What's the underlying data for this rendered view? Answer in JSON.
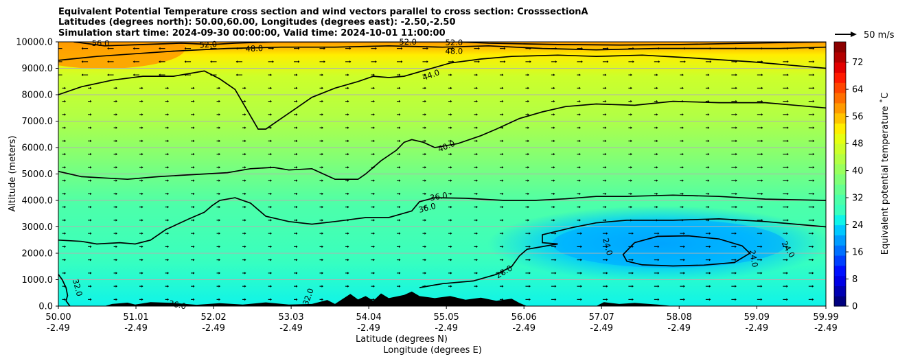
{
  "chart_data": {
    "type": "contourf",
    "title_lines": [
      "Equivalent Potential Temperature cross section and wind vectors parallel to cross section: CrosssectionA",
      "Latitudes (degrees north): 50.00,60.00, Longitudes (degrees east): -2.50,-2.50",
      "Simulation start time: 2024-09-30 00:00:00, Valid time: 2024-10-01 11:00:00"
    ],
    "ylabel": "Altitude (meters)",
    "xlabel_lat": "Latitude (degrees N)",
    "xlabel_lon": "Longitude (degrees E)",
    "xlim": [
      50.0,
      59.99
    ],
    "ylim": [
      0,
      10000
    ],
    "y_ticks": [
      {
        "value": 0,
        "label": "0.0"
      },
      {
        "value": 1000,
        "label": "1000.0"
      },
      {
        "value": 2000,
        "label": "2000.0"
      },
      {
        "value": 3000,
        "label": "3000.0"
      },
      {
        "value": 4000,
        "label": "4000.0"
      },
      {
        "value": 5000,
        "label": "5000.0"
      },
      {
        "value": 6000,
        "label": "6000.0"
      },
      {
        "value": 7000,
        "label": "7000.0"
      },
      {
        "value": 8000,
        "label": "8000.0"
      },
      {
        "value": 9000,
        "label": "9000.0"
      },
      {
        "value": 10000,
        "label": "10000.0"
      }
    ],
    "x_ticks": [
      {
        "value": 50.0,
        "lat": "50.00",
        "lon": "-2.49"
      },
      {
        "value": 51.01,
        "lat": "51.01",
        "lon": "-2.49"
      },
      {
        "value": 52.02,
        "lat": "52.02",
        "lon": "-2.49"
      },
      {
        "value": 53.03,
        "lat": "53.03",
        "lon": "-2.49"
      },
      {
        "value": 54.04,
        "lat": "54.04",
        "lon": "-2.49"
      },
      {
        "value": 55.05,
        "lat": "55.05",
        "lon": "-2.49"
      },
      {
        "value": 56.06,
        "lat": "56.06",
        "lon": "-2.49"
      },
      {
        "value": 57.07,
        "lat": "57.07",
        "lon": "-2.49"
      },
      {
        "value": 58.08,
        "lat": "58.08",
        "lon": "-2.49"
      },
      {
        "value": 59.09,
        "lat": "59.09",
        "lon": "-2.49"
      },
      {
        "value": 59.99,
        "lat": "59.99",
        "lon": "-2.49"
      }
    ],
    "colorbar": {
      "label": "Equivalent potential temperature ˚C",
      "min": 0,
      "max": 78,
      "ticks": [
        0,
        8,
        16,
        24,
        32,
        40,
        48,
        56,
        64,
        72
      ],
      "colors": [
        "#00007f",
        "#0000b2",
        "#0000e5",
        "#0010ff",
        "#0040ff",
        "#0070ff",
        "#009cff",
        "#00c8ff",
        "#0ff4e9",
        "#3affbd",
        "#4cffaa",
        "#66ff90",
        "#80ff77",
        "#99ff5d",
        "#b3ff44",
        "#cdff2a",
        "#e6ff11",
        "#ffee00",
        "#ffc400",
        "#ff9a00",
        "#ff6f00",
        "#ff4500",
        "#ff1a00",
        "#e20000",
        "#b20000",
        "#8b0000"
      ]
    },
    "vector_key": {
      "label": "50 m/s",
      "value": 50
    },
    "contour_levels": [
      {
        "level": 24,
        "label": "24.0",
        "points": [
          [
            57.5,
            2400
          ],
          [
            57.8,
            2640
          ],
          [
            58.2,
            2660
          ],
          [
            58.6,
            2540
          ],
          [
            58.9,
            2280
          ],
          [
            59.0,
            2000
          ],
          [
            58.8,
            1650
          ],
          [
            58.4,
            1550
          ],
          [
            58.0,
            1520
          ],
          [
            57.6,
            1560
          ],
          [
            57.4,
            1700
          ],
          [
            57.35,
            1950
          ],
          [
            57.5,
            2400
          ]
        ]
      },
      {
        "level": 28,
        "label": "28.0",
        "points": [
          [
            54.7,
            700
          ],
          [
            55.0,
            850
          ],
          [
            55.4,
            950
          ],
          [
            55.7,
            1200
          ],
          [
            55.9,
            1500
          ],
          [
            56.0,
            1900
          ],
          [
            56.1,
            2150
          ],
          [
            56.4,
            2300
          ],
          [
            56.5,
            2350
          ],
          [
            56.3,
            2400
          ],
          [
            56.3,
            2700
          ],
          [
            56.7,
            2980
          ],
          [
            57.0,
            3150
          ],
          [
            57.4,
            3250
          ],
          [
            58.0,
            3250
          ],
          [
            58.6,
            3300
          ],
          [
            59.2,
            3200
          ],
          [
            59.99,
            3000
          ]
        ]
      },
      {
        "level": 32,
        "label": "32.0",
        "points": [
          [
            50.0,
            1200
          ],
          [
            50.05,
            1000
          ],
          [
            50.1,
            700
          ],
          [
            50.12,
            400
          ],
          [
            50.1,
            200
          ],
          [
            50.15,
            0
          ]
        ]
      },
      {
        "level": 36,
        "label": "36.0",
        "points": [
          [
            50.0,
            2500
          ],
          [
            50.3,
            2450
          ],
          [
            50.5,
            2350
          ],
          [
            50.8,
            2400
          ],
          [
            51.0,
            2350
          ],
          [
            51.2,
            2500
          ],
          [
            51.4,
            2900
          ],
          [
            51.7,
            3300
          ],
          [
            51.9,
            3550
          ],
          [
            52.0,
            3800
          ],
          [
            52.1,
            4000
          ],
          [
            52.3,
            4100
          ],
          [
            52.5,
            3900
          ],
          [
            52.7,
            3400
          ],
          [
            53.0,
            3200
          ],
          [
            53.3,
            3100
          ],
          [
            53.6,
            3200
          ],
          [
            54.0,
            3350
          ],
          [
            54.3,
            3350
          ],
          [
            54.6,
            3600
          ],
          [
            54.7,
            3950
          ],
          [
            54.9,
            4100
          ],
          [
            55.3,
            4080
          ],
          [
            55.8,
            4000
          ],
          [
            56.2,
            4000
          ],
          [
            56.6,
            4060
          ],
          [
            57.0,
            4150
          ],
          [
            57.4,
            4150
          ],
          [
            58.0,
            4200
          ],
          [
            58.6,
            4150
          ],
          [
            59.2,
            4050
          ],
          [
            59.99,
            4000
          ]
        ]
      },
      {
        "level": 40,
        "label": "40.0",
        "points": [
          [
            50.0,
            5100
          ],
          [
            50.3,
            4900
          ],
          [
            50.6,
            4850
          ],
          [
            50.9,
            4800
          ],
          [
            51.3,
            4900
          ],
          [
            51.6,
            4950
          ],
          [
            51.9,
            5000
          ],
          [
            52.2,
            5050
          ],
          [
            52.5,
            5200
          ],
          [
            52.8,
            5250
          ],
          [
            53.0,
            5150
          ],
          [
            53.3,
            5200
          ],
          [
            53.6,
            4800
          ],
          [
            53.9,
            4800
          ],
          [
            54.0,
            5000
          ],
          [
            54.2,
            5500
          ],
          [
            54.4,
            5900
          ],
          [
            54.5,
            6200
          ],
          [
            54.6,
            6300
          ],
          [
            54.75,
            6200
          ],
          [
            54.9,
            6000
          ],
          [
            55.2,
            6150
          ],
          [
            55.5,
            6450
          ],
          [
            55.7,
            6700
          ],
          [
            56.0,
            7100
          ],
          [
            56.3,
            7350
          ],
          [
            56.6,
            7550
          ],
          [
            57.0,
            7650
          ],
          [
            57.5,
            7600
          ],
          [
            58.0,
            7750
          ],
          [
            58.6,
            7700
          ],
          [
            59.2,
            7700
          ],
          [
            59.99,
            7500
          ]
        ]
      },
      {
        "level": 44,
        "label": "44.0",
        "points": [
          [
            50.0,
            8000
          ],
          [
            50.3,
            8300
          ],
          [
            50.7,
            8550
          ],
          [
            51.1,
            8700
          ],
          [
            51.5,
            8700
          ],
          [
            51.9,
            8900
          ],
          [
            52.1,
            8600
          ],
          [
            52.3,
            8200
          ],
          [
            52.4,
            7700
          ],
          [
            52.5,
            7200
          ],
          [
            52.6,
            6700
          ],
          [
            52.7,
            6700
          ],
          [
            52.9,
            7100
          ],
          [
            53.1,
            7500
          ],
          [
            53.3,
            7900
          ],
          [
            53.6,
            8250
          ],
          [
            53.9,
            8500
          ],
          [
            54.1,
            8700
          ],
          [
            54.3,
            8650
          ],
          [
            54.5,
            8700
          ],
          [
            54.8,
            8950
          ],
          [
            55.1,
            9200
          ],
          [
            55.5,
            9350
          ],
          [
            55.9,
            9450
          ],
          [
            56.5,
            9500
          ],
          [
            57.0,
            9450
          ],
          [
            57.6,
            9500
          ],
          [
            58.2,
            9400
          ],
          [
            59.0,
            9250
          ],
          [
            59.99,
            9000
          ]
        ]
      },
      {
        "level": 48,
        "label": "48.0",
        "points": [
          [
            50.0,
            9300
          ],
          [
            50.5,
            9450
          ],
          [
            51.0,
            9550
          ],
          [
            51.5,
            9650
          ],
          [
            52.2,
            9750
          ],
          [
            52.9,
            9800
          ],
          [
            53.6,
            9800
          ],
          [
            54.3,
            9850
          ],
          [
            55.0,
            9800
          ],
          [
            55.6,
            9850
          ],
          [
            56.3,
            9750
          ],
          [
            57.0,
            9700
          ],
          [
            57.8,
            9750
          ],
          [
            58.6,
            9750
          ],
          [
            59.4,
            9750
          ],
          [
            59.99,
            9800
          ]
        ]
      },
      {
        "level": 52,
        "label": "52.0",
        "points": [
          [
            50.2,
            10000
          ],
          [
            50.6,
            9850
          ],
          [
            51.1,
            9900
          ],
          [
            51.6,
            9950
          ],
          [
            52.0,
            9900
          ],
          [
            52.3,
            9950
          ],
          [
            52.8,
            10000
          ],
          [
            55.2,
            10000
          ],
          [
            55.6,
            9950
          ],
          [
            56.5,
            9900
          ],
          [
            57.3,
            9880
          ],
          [
            58.1,
            9900
          ],
          [
            59.0,
            9950
          ],
          [
            59.99,
            10000
          ]
        ]
      }
    ],
    "contour_labels": [
      {
        "text": "52.0",
        "x": 51.95,
        "y": 9900,
        "angle": -4
      },
      {
        "text": "48.0",
        "x": 52.55,
        "y": 9750,
        "angle": -3
      },
      {
        "text": "52.0",
        "x": 54.55,
        "y": 10000,
        "angle": 0
      },
      {
        "text": "52.0",
        "x": 55.15,
        "y": 9970,
        "angle": 0
      },
      {
        "text": "48.0",
        "x": 55.15,
        "y": 9650,
        "angle": 0
      },
      {
        "text": "44.0",
        "x": 54.85,
        "y": 8750,
        "angle": -20
      },
      {
        "text": "40.0",
        "x": 55.05,
        "y": 6050,
        "angle": -22
      },
      {
        "text": "36.0",
        "x": 54.95,
        "y": 4150,
        "angle": -10
      },
      {
        "text": "36.0",
        "x": 54.8,
        "y": 3720,
        "angle": -15
      },
      {
        "text": "28.0",
        "x": 55.8,
        "y": 1300,
        "angle": -30
      },
      {
        "text": "24.0",
        "x": 57.15,
        "y": 2250,
        "angle": 75
      },
      {
        "text": "24.0",
        "x": 59.05,
        "y": 1800,
        "angle": 80
      },
      {
        "text": "24.0",
        "x": 59.5,
        "y": 2150,
        "angle": 60
      },
      {
        "text": "32.0",
        "x": 50.25,
        "y": 700,
        "angle": 75
      },
      {
        "text": "32.0",
        "x": 53.25,
        "y": 350,
        "angle": -70
      },
      {
        "text": "36.0",
        "x": 51.55,
        "y": 50,
        "angle": 12
      },
      {
        "text": "56.0",
        "x": 50.55,
        "y": 9950,
        "angle": 0
      }
    ],
    "terrain_profile": [
      [
        50.0,
        0
      ],
      [
        50.6,
        0
      ],
      [
        50.7,
        80
      ],
      [
        50.9,
        130
      ],
      [
        51.0,
        60
      ],
      [
        51.2,
        150
      ],
      [
        51.5,
        120
      ],
      [
        51.8,
        50
      ],
      [
        52.1,
        110
      ],
      [
        52.4,
        60
      ],
      [
        52.7,
        140
      ],
      [
        53.0,
        60
      ],
      [
        53.3,
        80
      ],
      [
        53.5,
        230
      ],
      [
        53.6,
        80
      ],
      [
        53.8,
        460
      ],
      [
        53.9,
        250
      ],
      [
        54.0,
        380
      ],
      [
        54.1,
        200
      ],
      [
        54.2,
        480
      ],
      [
        54.3,
        300
      ],
      [
        54.5,
        420
      ],
      [
        54.6,
        550
      ],
      [
        54.7,
        380
      ],
      [
        54.9,
        300
      ],
      [
        55.1,
        380
      ],
      [
        55.3,
        240
      ],
      [
        55.5,
        320
      ],
      [
        55.7,
        200
      ],
      [
        55.9,
        280
      ],
      [
        56.0,
        120
      ],
      [
        56.1,
        0
      ],
      [
        57.0,
        0
      ],
      [
        57.1,
        150
      ],
      [
        57.3,
        80
      ],
      [
        57.5,
        120
      ],
      [
        57.8,
        60
      ],
      [
        58.0,
        0
      ]
    ]
  }
}
